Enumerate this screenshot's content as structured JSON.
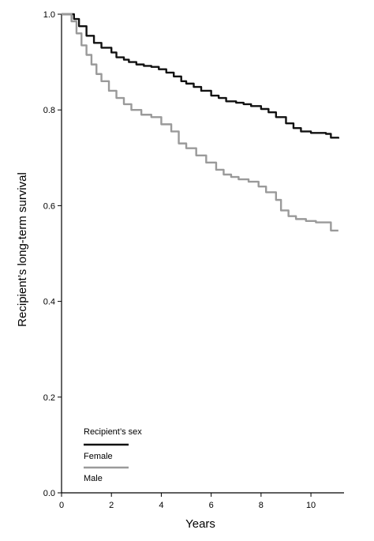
{
  "chart_data": {
    "type": "line",
    "xlabel": "Years",
    "ylabel": "Recipient’s long-term survival",
    "xlim": [
      0,
      11.2
    ],
    "ylim": [
      0.0,
      1.0
    ],
    "x_ticks": [
      0,
      2,
      4,
      6,
      8,
      10
    ],
    "y_ticks": [
      0.0,
      0.2,
      0.4,
      0.6,
      0.8,
      1.0
    ],
    "x_tick_labels": [
      "0",
      "2",
      "4",
      "6",
      "8",
      "10"
    ],
    "y_tick_labels": [
      "0.0",
      "0.2",
      "0.4",
      "0.6",
      "0.8",
      "1.0"
    ],
    "grid": false,
    "legend": {
      "title": "Recipient’s sex",
      "placement": "bottom-left"
    },
    "colors": {
      "female": "#111111",
      "male": "#9a9a9a"
    },
    "series": [
      {
        "name": "Female",
        "x": [
          0,
          0.3,
          0.5,
          0.7,
          1.0,
          1.3,
          1.6,
          2.0,
          2.2,
          2.5,
          2.7,
          3.0,
          3.3,
          3.6,
          3.9,
          4.2,
          4.5,
          4.8,
          5.0,
          5.3,
          5.6,
          6.0,
          6.3,
          6.6,
          7.0,
          7.3,
          7.6,
          8.0,
          8.3,
          8.6,
          9.0,
          9.3,
          9.6,
          10.0,
          10.3,
          10.6,
          10.8,
          11.1
        ],
        "values": [
          1.0,
          1.0,
          0.99,
          0.975,
          0.955,
          0.94,
          0.93,
          0.92,
          0.91,
          0.905,
          0.9,
          0.895,
          0.892,
          0.89,
          0.885,
          0.878,
          0.87,
          0.86,
          0.855,
          0.848,
          0.84,
          0.83,
          0.825,
          0.818,
          0.815,
          0.812,
          0.808,
          0.802,
          0.795,
          0.785,
          0.772,
          0.762,
          0.755,
          0.752,
          0.752,
          0.75,
          0.742,
          0.74
        ]
      },
      {
        "name": "Male",
        "x": [
          0,
          0.2,
          0.4,
          0.6,
          0.8,
          1.0,
          1.2,
          1.4,
          1.6,
          1.9,
          2.2,
          2.5,
          2.8,
          3.2,
          3.6,
          4.0,
          4.4,
          4.7,
          5.0,
          5.4,
          5.8,
          6.2,
          6.5,
          6.8,
          7.1,
          7.5,
          7.9,
          8.2,
          8.6,
          8.8,
          9.1,
          9.4,
          9.8,
          10.2,
          10.6,
          10.8,
          11.1
        ],
        "values": [
          1.0,
          1.0,
          0.985,
          0.96,
          0.935,
          0.915,
          0.895,
          0.875,
          0.86,
          0.84,
          0.825,
          0.812,
          0.8,
          0.79,
          0.785,
          0.77,
          0.755,
          0.73,
          0.72,
          0.705,
          0.69,
          0.675,
          0.665,
          0.66,
          0.655,
          0.65,
          0.64,
          0.628,
          0.612,
          0.59,
          0.578,
          0.572,
          0.568,
          0.565,
          0.565,
          0.548,
          0.548
        ]
      }
    ]
  }
}
